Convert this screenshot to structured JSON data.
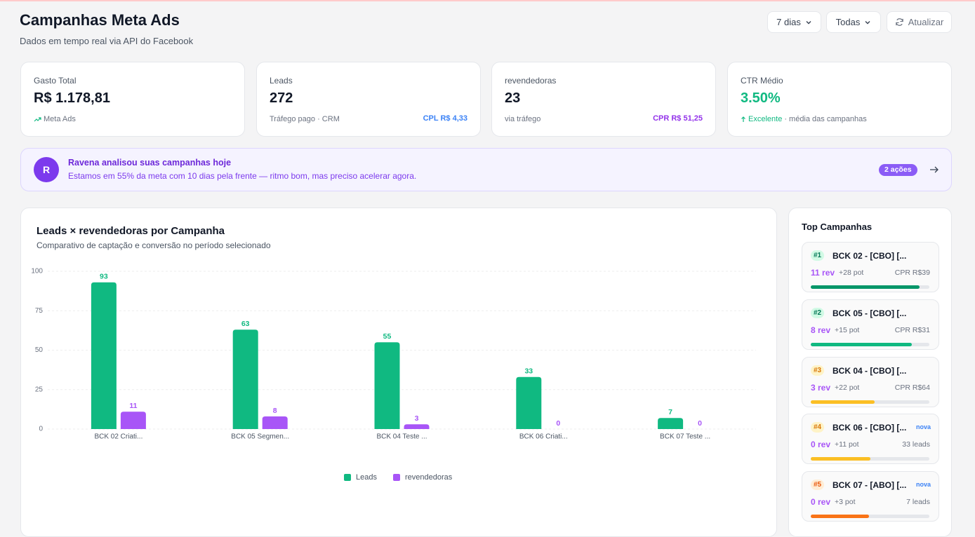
{
  "header": {
    "title": "Campanhas Meta Ads",
    "subtitle": "Dados em tempo real via API do Facebook",
    "buttons": [
      "7 dias",
      "Todas",
      "Atualizar"
    ]
  },
  "kpis": [
    {
      "label": "Gasto Total",
      "value": "R$ 1.178,81",
      "note": "Meta Ads"
    },
    {
      "label": "Leads",
      "value": "272",
      "note": "Tráfego pago · CRM",
      "badge": "CPL R$ 4,33"
    },
    {
      "label": "revendedoras",
      "value": "23",
      "note": "via tráfego",
      "badge": "CPR R$ 51,25"
    },
    {
      "label": "CTR Médio",
      "value": "3.50%",
      "note": "Excelente",
      "note_extra": "· média das campanhas"
    }
  ],
  "insight": {
    "avatar": "R",
    "title": "Ravena analisou suas campanhas hoje",
    "text": "Estamos em 55% da meta com 10 dias pela frente — ritmo bom, mas preciso acelerar agora.",
    "badge": "2 ações"
  },
  "chart_data": {
    "type": "bar",
    "title": "Leads × revendedoras por Campanha",
    "subtitle": "Comparativo de captação e conversão no período selecionado",
    "categories": [
      "BCK 02 Criati...",
      "BCK 05 Segmen...",
      "BCK 04 Teste ...",
      "BCK 06 Criati...",
      "BCK 07 Teste ..."
    ],
    "series": [
      {
        "name": "Leads",
        "color": "#10b981",
        "values": [
          93,
          63,
          55,
          33,
          7
        ]
      },
      {
        "name": "revendedoras",
        "color": "#a855f7",
        "values": [
          11,
          8,
          3,
          0,
          0
        ]
      }
    ],
    "ylim": [
      0,
      100
    ],
    "yticks": [
      0,
      25,
      50,
      75,
      100
    ],
    "grid": true
  },
  "top_campaigns": {
    "title": "Top Campanhas",
    "items": [
      {
        "rank": "#1",
        "name": "BCK 02 - [CBO] [...",
        "rev": "11 rev",
        "pot": "+28 pot",
        "metric": "CPR R$39",
        "progress": 92,
        "color": "#059669",
        "rank_bg": "#d1fae5",
        "rank_color": "#047857"
      },
      {
        "rank": "#2",
        "name": "BCK 05 - [CBO] [...",
        "rev": "8 rev",
        "pot": "+15 pot",
        "metric": "CPR R$31",
        "progress": 85,
        "color": "#10b981",
        "rank_bg": "#d1fae5",
        "rank_color": "#047857"
      },
      {
        "rank": "#3",
        "name": "BCK 04 - [CBO] [...",
        "rev": "3 rev",
        "pot": "+22 pot",
        "metric": "CPR R$64",
        "progress": 54,
        "color": "#fbbf24",
        "rank_bg": "#fef3c7",
        "rank_color": "#d97706"
      },
      {
        "rank": "#4",
        "name": "BCK 06 - [CBO] [...",
        "tag": "nova",
        "rev": "0 rev",
        "pot": "+11 pot",
        "metric": "33 leads",
        "progress": 50,
        "color": "#fbbf24",
        "rank_bg": "#fef3c7",
        "rank_color": "#d97706"
      },
      {
        "rank": "#5",
        "name": "BCK 07 - [ABO] [...",
        "tag": "nova",
        "rev": "0 rev",
        "pot": "+3 pot",
        "metric": "7 leads",
        "progress": 49,
        "color": "#f97316",
        "rank_bg": "#ffedd5",
        "rank_color": "#ea580c"
      }
    ]
  }
}
